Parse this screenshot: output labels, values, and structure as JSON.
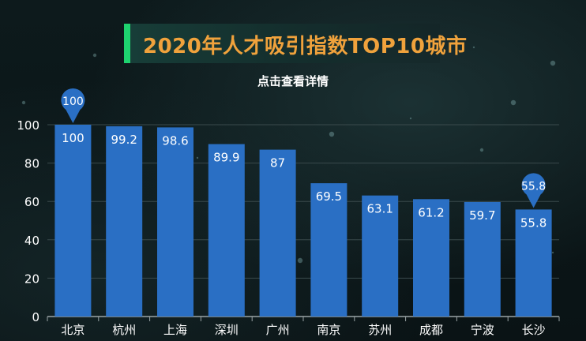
{
  "title": "2020年人才吸引指数TOP10城市",
  "subtitle": "点击查看详情",
  "colors": {
    "bar": "#2a6fc4",
    "title": "#f0a23c",
    "accent": "#1ed36f",
    "axis": "#ffffff",
    "grid": "#3a4a4c"
  },
  "chart_data": {
    "type": "bar",
    "title": "2020年人才吸引指数TOP10城市",
    "xlabel": "",
    "ylabel": "",
    "ylim": [
      0,
      100
    ],
    "yticks": [
      0,
      20,
      40,
      60,
      80,
      100
    ],
    "categories": [
      "北京",
      "杭州",
      "上海",
      "深圳",
      "广州",
      "南京",
      "苏州",
      "成都",
      "宁波",
      "长沙"
    ],
    "values": [
      100,
      99.2,
      98.6,
      89.9,
      87,
      69.5,
      63.1,
      61.2,
      59.7,
      55.8
    ],
    "markers": [
      {
        "category": "北京",
        "label": "100"
      },
      {
        "category": "长沙",
        "label": "55.8"
      }
    ]
  }
}
